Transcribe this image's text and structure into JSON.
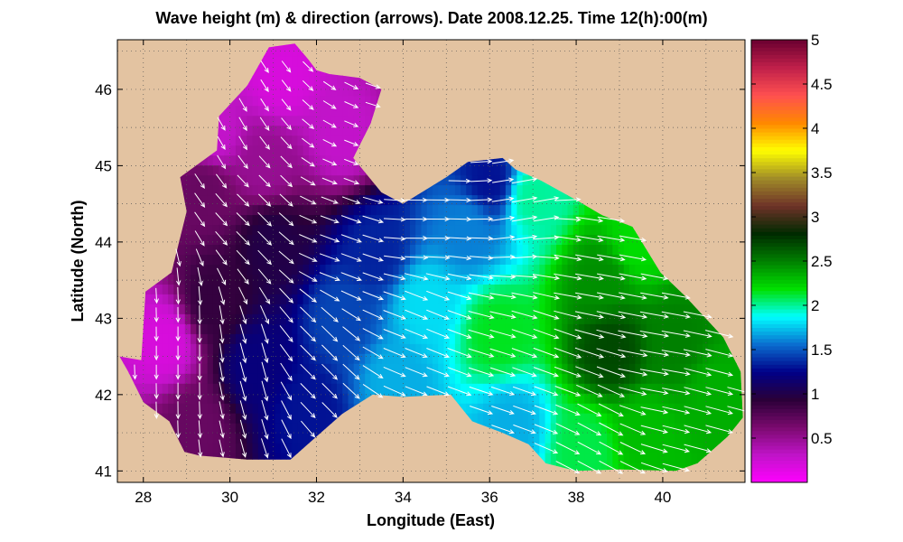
{
  "figure": {
    "title": "Wave height (m) & direction (arrows). Date 2008.12.25. Time 12(h):00(m)"
  },
  "colors": {
    "land": "#e3c3a1",
    "arrow": "#ffffff",
    "axis": "#000000",
    "colormap": [
      "#ff00ff",
      "#c014c8",
      "#7a0a6e",
      "#2a0038",
      "#000088",
      "#0a6ed0",
      "#00ffff",
      "#00e000",
      "#008000",
      "#002a00",
      "#6e3228",
      "#a08c28",
      "#ffff00",
      "#ff8800",
      "#ff5050",
      "#c0204a",
      "#6a0030"
    ]
  },
  "chart_data": {
    "type": "heatmap",
    "title": "Wave height (m) & direction (arrows). Date 2008.12.25. Time 12(h):00(m)",
    "xlabel": "Longitude (East)",
    "ylabel": "Latitude (North)",
    "xlim": [
      27.4,
      41.9
    ],
    "ylim": [
      40.85,
      46.65
    ],
    "x_ticks": [
      28,
      30,
      32,
      34,
      36,
      38,
      40
    ],
    "y_ticks": [
      41,
      42,
      43,
      44,
      45,
      46
    ],
    "x_tick_labels": [
      "28",
      "30",
      "32",
      "34",
      "36",
      "38",
      "40"
    ],
    "y_tick_labels": [
      "41",
      "42",
      "43",
      "44",
      "45",
      "46"
    ],
    "grid": true,
    "colorbar": {
      "range": [
        0,
        5
      ],
      "ticks": [
        0.5,
        1,
        1.5,
        2,
        2.5,
        3,
        3.5,
        4,
        4.5,
        5
      ],
      "tick_labels": [
        "0.5",
        "1",
        "1.5",
        "2",
        "2.5",
        "3",
        "3.5",
        "4",
        "4.5",
        "5"
      ]
    },
    "sea_outline": [
      [
        27.45,
        42.5
      ],
      [
        27.95,
        42.45
      ],
      [
        28.05,
        43.35
      ],
      [
        28.65,
        43.6
      ],
      [
        29.0,
        44.4
      ],
      [
        28.85,
        44.85
      ],
      [
        29.7,
        45.2
      ],
      [
        29.75,
        45.65
      ],
      [
        30.4,
        46.05
      ],
      [
        30.9,
        46.55
      ],
      [
        31.5,
        46.6
      ],
      [
        31.8,
        46.4
      ],
      [
        32.0,
        46.25
      ],
      [
        32.3,
        46.2
      ],
      [
        33.0,
        46.15
      ],
      [
        33.5,
        46.0
      ],
      [
        33.25,
        45.55
      ],
      [
        32.85,
        45.1
      ],
      [
        33.5,
        44.65
      ],
      [
        34.0,
        44.5
      ],
      [
        35.0,
        44.85
      ],
      [
        35.5,
        45.05
      ],
      [
        36.3,
        45.1
      ],
      [
        36.6,
        44.95
      ],
      [
        37.2,
        44.8
      ],
      [
        38.0,
        44.55
      ],
      [
        38.6,
        44.35
      ],
      [
        39.3,
        44.2
      ],
      [
        39.95,
        43.6
      ],
      [
        40.5,
        43.3
      ],
      [
        41.4,
        42.75
      ],
      [
        41.8,
        42.3
      ],
      [
        41.85,
        41.7
      ],
      [
        41.5,
        41.45
      ],
      [
        40.8,
        41.1
      ],
      [
        40.3,
        41.0
      ],
      [
        39.0,
        41.02
      ],
      [
        38.0,
        41.0
      ],
      [
        37.3,
        41.1
      ],
      [
        36.9,
        41.35
      ],
      [
        36.3,
        41.5
      ],
      [
        35.6,
        41.65
      ],
      [
        35.1,
        42.0
      ],
      [
        34.0,
        41.97
      ],
      [
        33.3,
        42.0
      ],
      [
        32.6,
        41.75
      ],
      [
        32.0,
        41.45
      ],
      [
        31.4,
        41.15
      ],
      [
        30.4,
        41.15
      ],
      [
        29.3,
        41.2
      ],
      [
        28.95,
        41.25
      ],
      [
        28.6,
        41.65
      ],
      [
        28.0,
        41.9
      ],
      [
        27.65,
        42.3
      ]
    ],
    "wave_height_anchors": [
      {
        "lon": 28.5,
        "lat": 42.7,
        "height": 0.2
      },
      {
        "lon": 29.6,
        "lat": 45.4,
        "height": 0.3
      },
      {
        "lon": 31.2,
        "lat": 46.2,
        "height": 0.2
      },
      {
        "lon": 29.4,
        "lat": 44.7,
        "height": 0.7
      },
      {
        "lon": 30.8,
        "lat": 45.0,
        "height": 0.5
      },
      {
        "lon": 32.6,
        "lat": 45.4,
        "height": 0.3
      },
      {
        "lon": 29.2,
        "lat": 41.6,
        "height": 0.7
      },
      {
        "lon": 29.6,
        "lat": 43.2,
        "height": 0.9
      },
      {
        "lon": 31.0,
        "lat": 44.0,
        "height": 1.0
      },
      {
        "lon": 30.6,
        "lat": 42.4,
        "height": 1.2
      },
      {
        "lon": 31.8,
        "lat": 41.8,
        "height": 1.3
      },
      {
        "lon": 32.6,
        "lat": 43.0,
        "height": 1.45
      },
      {
        "lon": 33.4,
        "lat": 43.9,
        "height": 1.35
      },
      {
        "lon": 33.8,
        "lat": 42.2,
        "height": 1.7
      },
      {
        "lon": 34.5,
        "lat": 43.2,
        "height": 1.8
      },
      {
        "lon": 35.5,
        "lat": 44.2,
        "height": 1.6
      },
      {
        "lon": 36.0,
        "lat": 44.8,
        "height": 1.3
      },
      {
        "lon": 37.0,
        "lat": 44.6,
        "height": 2.0
      },
      {
        "lon": 36.2,
        "lat": 42.8,
        "height": 2.15
      },
      {
        "lon": 36.5,
        "lat": 41.6,
        "height": 1.7
      },
      {
        "lon": 38.6,
        "lat": 43.5,
        "height": 2.45
      },
      {
        "lon": 38.8,
        "lat": 42.6,
        "height": 2.7
      },
      {
        "lon": 38.2,
        "lat": 41.3,
        "height": 2.1
      },
      {
        "lon": 40.3,
        "lat": 42.7,
        "height": 2.5
      },
      {
        "lon": 41.2,
        "lat": 42.0,
        "height": 2.35
      },
      {
        "lon": 39.6,
        "lat": 41.5,
        "height": 2.3
      },
      {
        "lon": 39.4,
        "lat": 44.0,
        "height": 2.2
      }
    ],
    "wave_direction_anchors": [
      {
        "lon": 29.0,
        "lat": 42.5,
        "dir_deg_cw_from_north": 180
      },
      {
        "lon": 30.0,
        "lat": 45.5,
        "dir_deg_cw_from_north": 150
      },
      {
        "lon": 30.5,
        "lat": 44.5,
        "dir_deg_cw_from_north": 135
      },
      {
        "lon": 30.5,
        "lat": 42.2,
        "dir_deg_cw_from_north": 165
      },
      {
        "lon": 32.0,
        "lat": 42.5,
        "dir_deg_cw_from_north": 135
      },
      {
        "lon": 32.5,
        "lat": 44.0,
        "dir_deg_cw_from_north": 110
      },
      {
        "lon": 34.5,
        "lat": 44.2,
        "dir_deg_cw_from_north": 90
      },
      {
        "lon": 34.5,
        "lat": 43.0,
        "dir_deg_cw_from_north": 112
      },
      {
        "lon": 37.0,
        "lat": 44.6,
        "dir_deg_cw_from_north": 80
      },
      {
        "lon": 37.5,
        "lat": 42.5,
        "dir_deg_cw_from_north": 110
      },
      {
        "lon": 38.0,
        "lat": 43.6,
        "dir_deg_cw_from_north": 100
      },
      {
        "lon": 40.0,
        "lat": 42.5,
        "dir_deg_cw_from_north": 100
      },
      {
        "lon": 41.0,
        "lat": 41.8,
        "dir_deg_cw_from_north": 105
      },
      {
        "lon": 38.5,
        "lat": 41.3,
        "dir_deg_cw_from_north": 118
      }
    ]
  }
}
